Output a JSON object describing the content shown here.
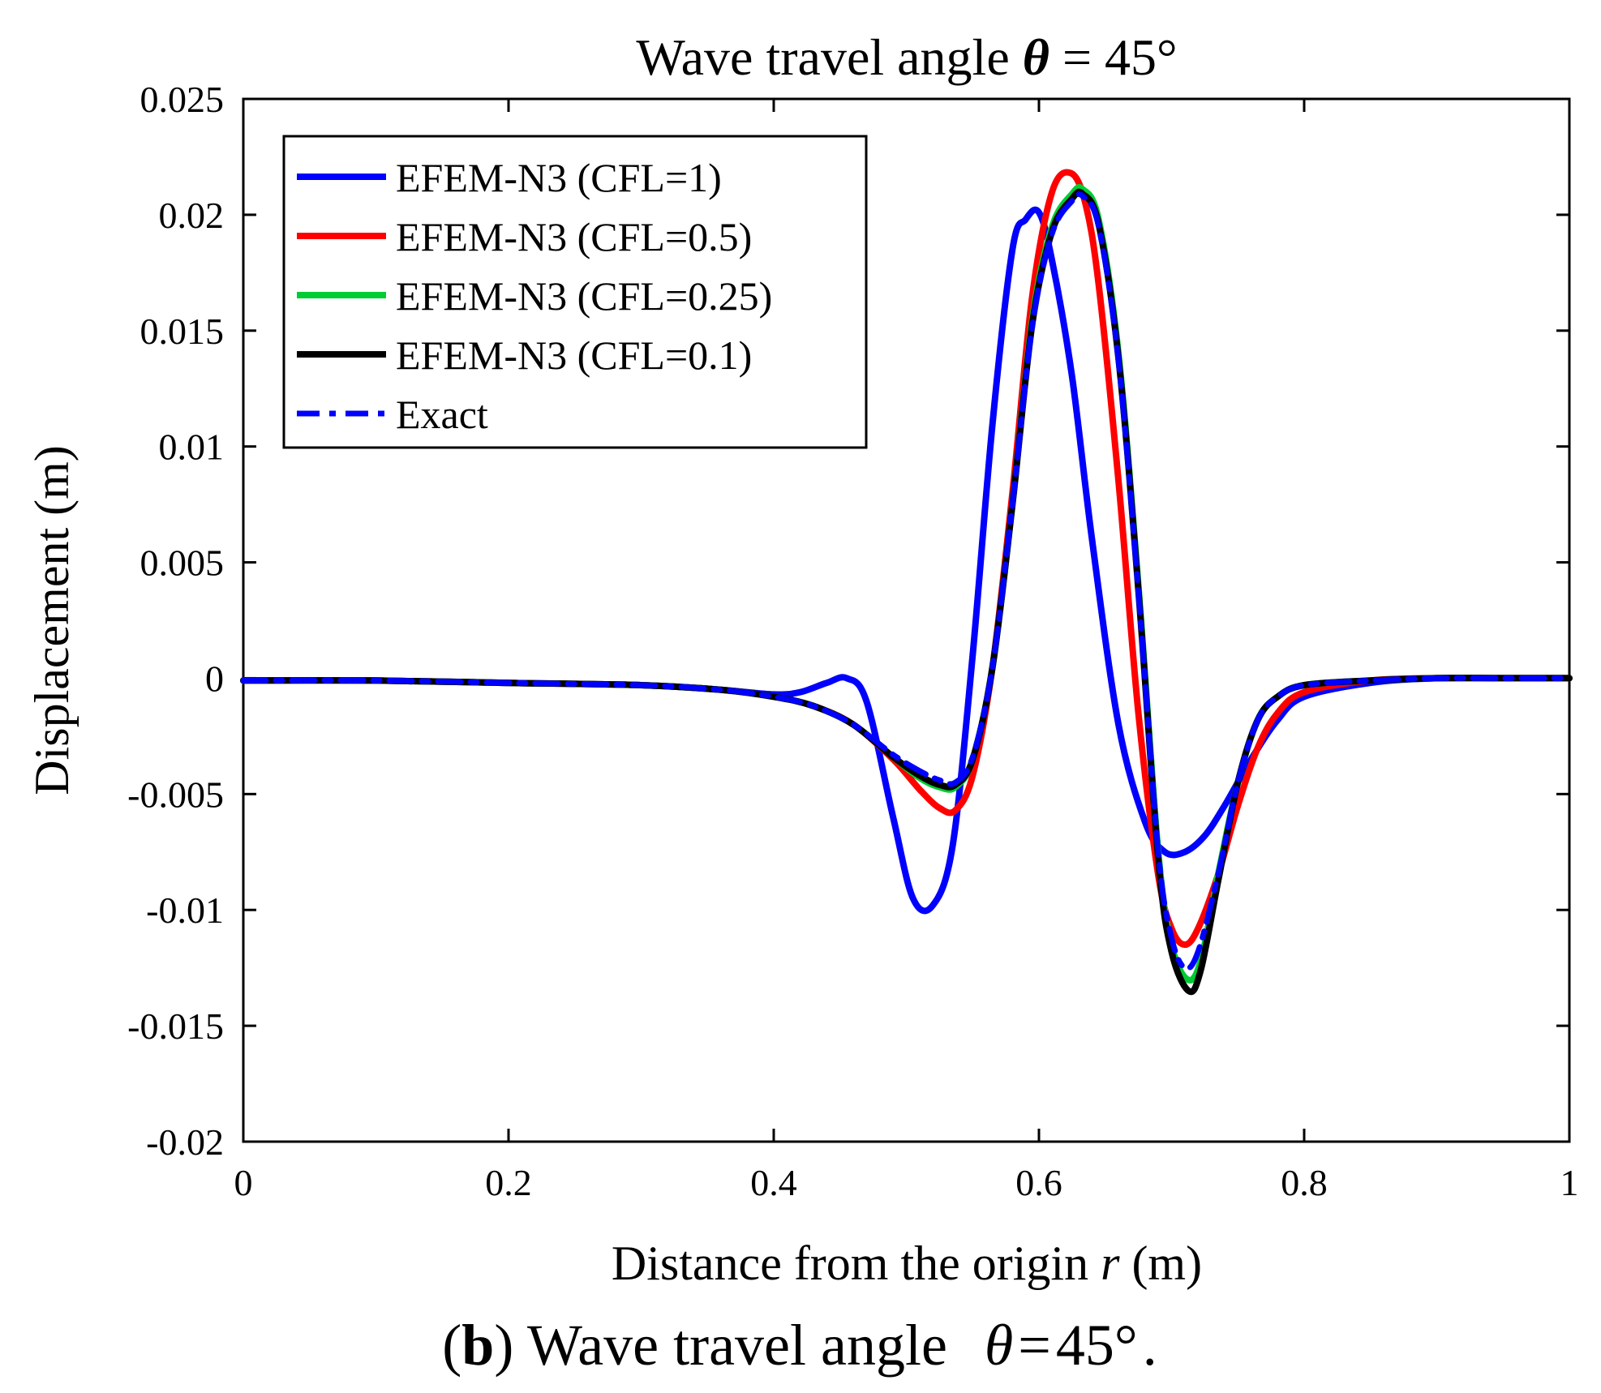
{
  "chart_data": {
    "type": "line",
    "title": "Wave travel angle θ = 45°",
    "title_parts": {
      "prefix": "Wave travel angle ",
      "symbol": "θ",
      "suffix": " = 45°"
    },
    "xlabel": "Distance from the origin r (m)",
    "xlabel_parts": {
      "prefix": "Distance from the origin ",
      "symbol": "r",
      "suffix": " (m)"
    },
    "ylabel": "Displacement (m)",
    "xlim": [
      0,
      1
    ],
    "ylim": [
      -0.02,
      0.025
    ],
    "x_ticks": [
      0,
      0.2,
      0.4,
      0.6,
      0.8,
      1
    ],
    "x_tick_labels": [
      "0",
      "0.2",
      "0.4",
      "0.6",
      "0.8",
      "1"
    ],
    "y_ticks": [
      -0.02,
      -0.015,
      -0.01,
      -0.005,
      0,
      0.005,
      0.01,
      0.015,
      0.02,
      0.025
    ],
    "y_tick_labels": [
      "-0.02",
      "-0.015",
      "-0.01",
      "-0.005",
      "0",
      "0.005",
      "0.01",
      "0.015",
      "0.02",
      "0.025"
    ],
    "grid": false,
    "legend_position": "top-left",
    "series": [
      {
        "name": "EFEM-N3 (CFL=1)",
        "color": "#0000ff",
        "dash": "solid",
        "x": [
          0,
          0.1,
          0.2,
          0.3,
          0.36,
          0.4,
          0.42,
          0.44,
          0.455,
          0.47,
          0.49,
          0.505,
          0.52,
          0.535,
          0.55,
          0.565,
          0.58,
          0.59,
          0.6,
          0.61,
          0.625,
          0.64,
          0.66,
          0.68,
          0.695,
          0.71,
          0.725,
          0.74,
          0.76,
          0.78,
          0.8,
          0.85,
          0.9,
          0.95,
          1
        ],
        "y": [
          -0.0001,
          -0.0001,
          -0.0002,
          -0.0003,
          -0.0005,
          -0.0007,
          -0.0006,
          -0.0002,
          0.0,
          -0.001,
          -0.006,
          -0.0095,
          -0.0098,
          -0.0072,
          0.001,
          0.011,
          0.0185,
          0.0198,
          0.0201,
          0.018,
          0.013,
          0.006,
          -0.002,
          -0.0062,
          -0.0075,
          -0.0075,
          -0.0068,
          -0.0055,
          -0.0035,
          -0.0018,
          -0.0008,
          -0.0002,
          0.0,
          0.0,
          0.0
        ]
      },
      {
        "name": "EFEM-N3 (CFL=0.5)",
        "color": "#ff0000",
        "dash": "solid",
        "x": [
          0,
          0.1,
          0.2,
          0.3,
          0.36,
          0.4,
          0.43,
          0.46,
          0.49,
          0.51,
          0.525,
          0.537,
          0.55,
          0.565,
          0.58,
          0.595,
          0.61,
          0.624,
          0.635,
          0.645,
          0.66,
          0.675,
          0.69,
          0.7,
          0.71,
          0.72,
          0.735,
          0.75,
          0.765,
          0.78,
          0.8,
          0.85,
          0.9,
          0.95,
          1
        ],
        "y": [
          -0.0001,
          -0.0001,
          -0.0002,
          -0.0003,
          -0.0005,
          -0.0008,
          -0.0012,
          -0.002,
          -0.0035,
          -0.0048,
          -0.0056,
          -0.0057,
          -0.0042,
          0.0005,
          0.008,
          0.0165,
          0.021,
          0.0218,
          0.0205,
          0.017,
          0.0085,
          -0.0015,
          -0.0085,
          -0.0108,
          -0.0115,
          -0.0108,
          -0.0085,
          -0.0055,
          -0.003,
          -0.0015,
          -0.0006,
          -0.0001,
          0.0,
          0.0,
          0.0
        ]
      },
      {
        "name": "EFEM-N3 (CFL=0.25)",
        "color": "#00cc33",
        "dash": "solid",
        "x": [
          0,
          0.1,
          0.2,
          0.3,
          0.36,
          0.4,
          0.43,
          0.46,
          0.49,
          0.51,
          0.525,
          0.537,
          0.55,
          0.565,
          0.58,
          0.595,
          0.61,
          0.625,
          0.633,
          0.645,
          0.66,
          0.675,
          0.69,
          0.7,
          0.712,
          0.722,
          0.735,
          0.75,
          0.765,
          0.78,
          0.8,
          0.85,
          0.9,
          0.95,
          1
        ],
        "y": [
          -0.0001,
          -0.0001,
          -0.0002,
          -0.0003,
          -0.0005,
          -0.0008,
          -0.0012,
          -0.002,
          -0.0034,
          -0.0043,
          -0.0047,
          -0.0047,
          -0.0035,
          0.0005,
          0.0075,
          0.0155,
          0.0195,
          0.0209,
          0.0211,
          0.0198,
          0.014,
          0.004,
          -0.0075,
          -0.0115,
          -0.013,
          -0.0122,
          -0.0085,
          -0.0045,
          -0.0018,
          -0.0008,
          -0.0003,
          -0.0001,
          0.0,
          0.0,
          0.0
        ]
      },
      {
        "name": "EFEM-N3 (CFL=0.1)",
        "color": "#000000",
        "dash": "solid",
        "x": [
          0,
          0.1,
          0.2,
          0.3,
          0.36,
          0.4,
          0.43,
          0.46,
          0.49,
          0.51,
          0.525,
          0.537,
          0.55,
          0.565,
          0.58,
          0.595,
          0.61,
          0.625,
          0.633,
          0.645,
          0.66,
          0.675,
          0.69,
          0.7,
          0.713,
          0.722,
          0.735,
          0.75,
          0.765,
          0.78,
          0.8,
          0.85,
          0.9,
          0.95,
          1
        ],
        "y": [
          -0.0001,
          -0.0001,
          -0.0002,
          -0.0003,
          -0.0005,
          -0.0008,
          -0.0012,
          -0.002,
          -0.0034,
          -0.0042,
          -0.0046,
          -0.0046,
          -0.0035,
          0.0005,
          0.0075,
          0.0153,
          0.0193,
          0.0207,
          0.0209,
          0.0196,
          0.0138,
          0.0038,
          -0.0078,
          -0.0118,
          -0.0135,
          -0.0126,
          -0.0088,
          -0.0045,
          -0.0018,
          -0.0008,
          -0.0003,
          -0.0001,
          0.0,
          0.0,
          0.0
        ]
      },
      {
        "name": "Exact",
        "color": "#0000ff",
        "dash": "dashdot",
        "x": [
          0,
          0.1,
          0.2,
          0.3,
          0.36,
          0.4,
          0.43,
          0.46,
          0.49,
          0.51,
          0.525,
          0.537,
          0.55,
          0.565,
          0.58,
          0.595,
          0.61,
          0.625,
          0.633,
          0.645,
          0.66,
          0.675,
          0.69,
          0.7,
          0.71,
          0.72,
          0.735,
          0.75,
          0.765,
          0.78,
          0.8,
          0.85,
          0.9,
          0.95,
          1
        ],
        "y": [
          -0.0001,
          -0.0001,
          -0.0002,
          -0.0003,
          -0.0005,
          -0.0008,
          -0.0012,
          -0.002,
          -0.0033,
          -0.004,
          -0.0044,
          -0.0045,
          -0.0034,
          0.0005,
          0.0075,
          0.0152,
          0.0192,
          0.0206,
          0.0208,
          0.0195,
          0.0137,
          0.0037,
          -0.0075,
          -0.0112,
          -0.0125,
          -0.0118,
          -0.0085,
          -0.0045,
          -0.0018,
          -0.0008,
          -0.0003,
          -0.0001,
          0.0,
          0.0,
          0.0
        ]
      }
    ]
  },
  "caption": {
    "label": "b",
    "open": "(",
    "close": ")",
    "text": " Wave travel angle ",
    "symbol": "θ",
    "equals": "=",
    "value": "45°",
    "period": "."
  }
}
